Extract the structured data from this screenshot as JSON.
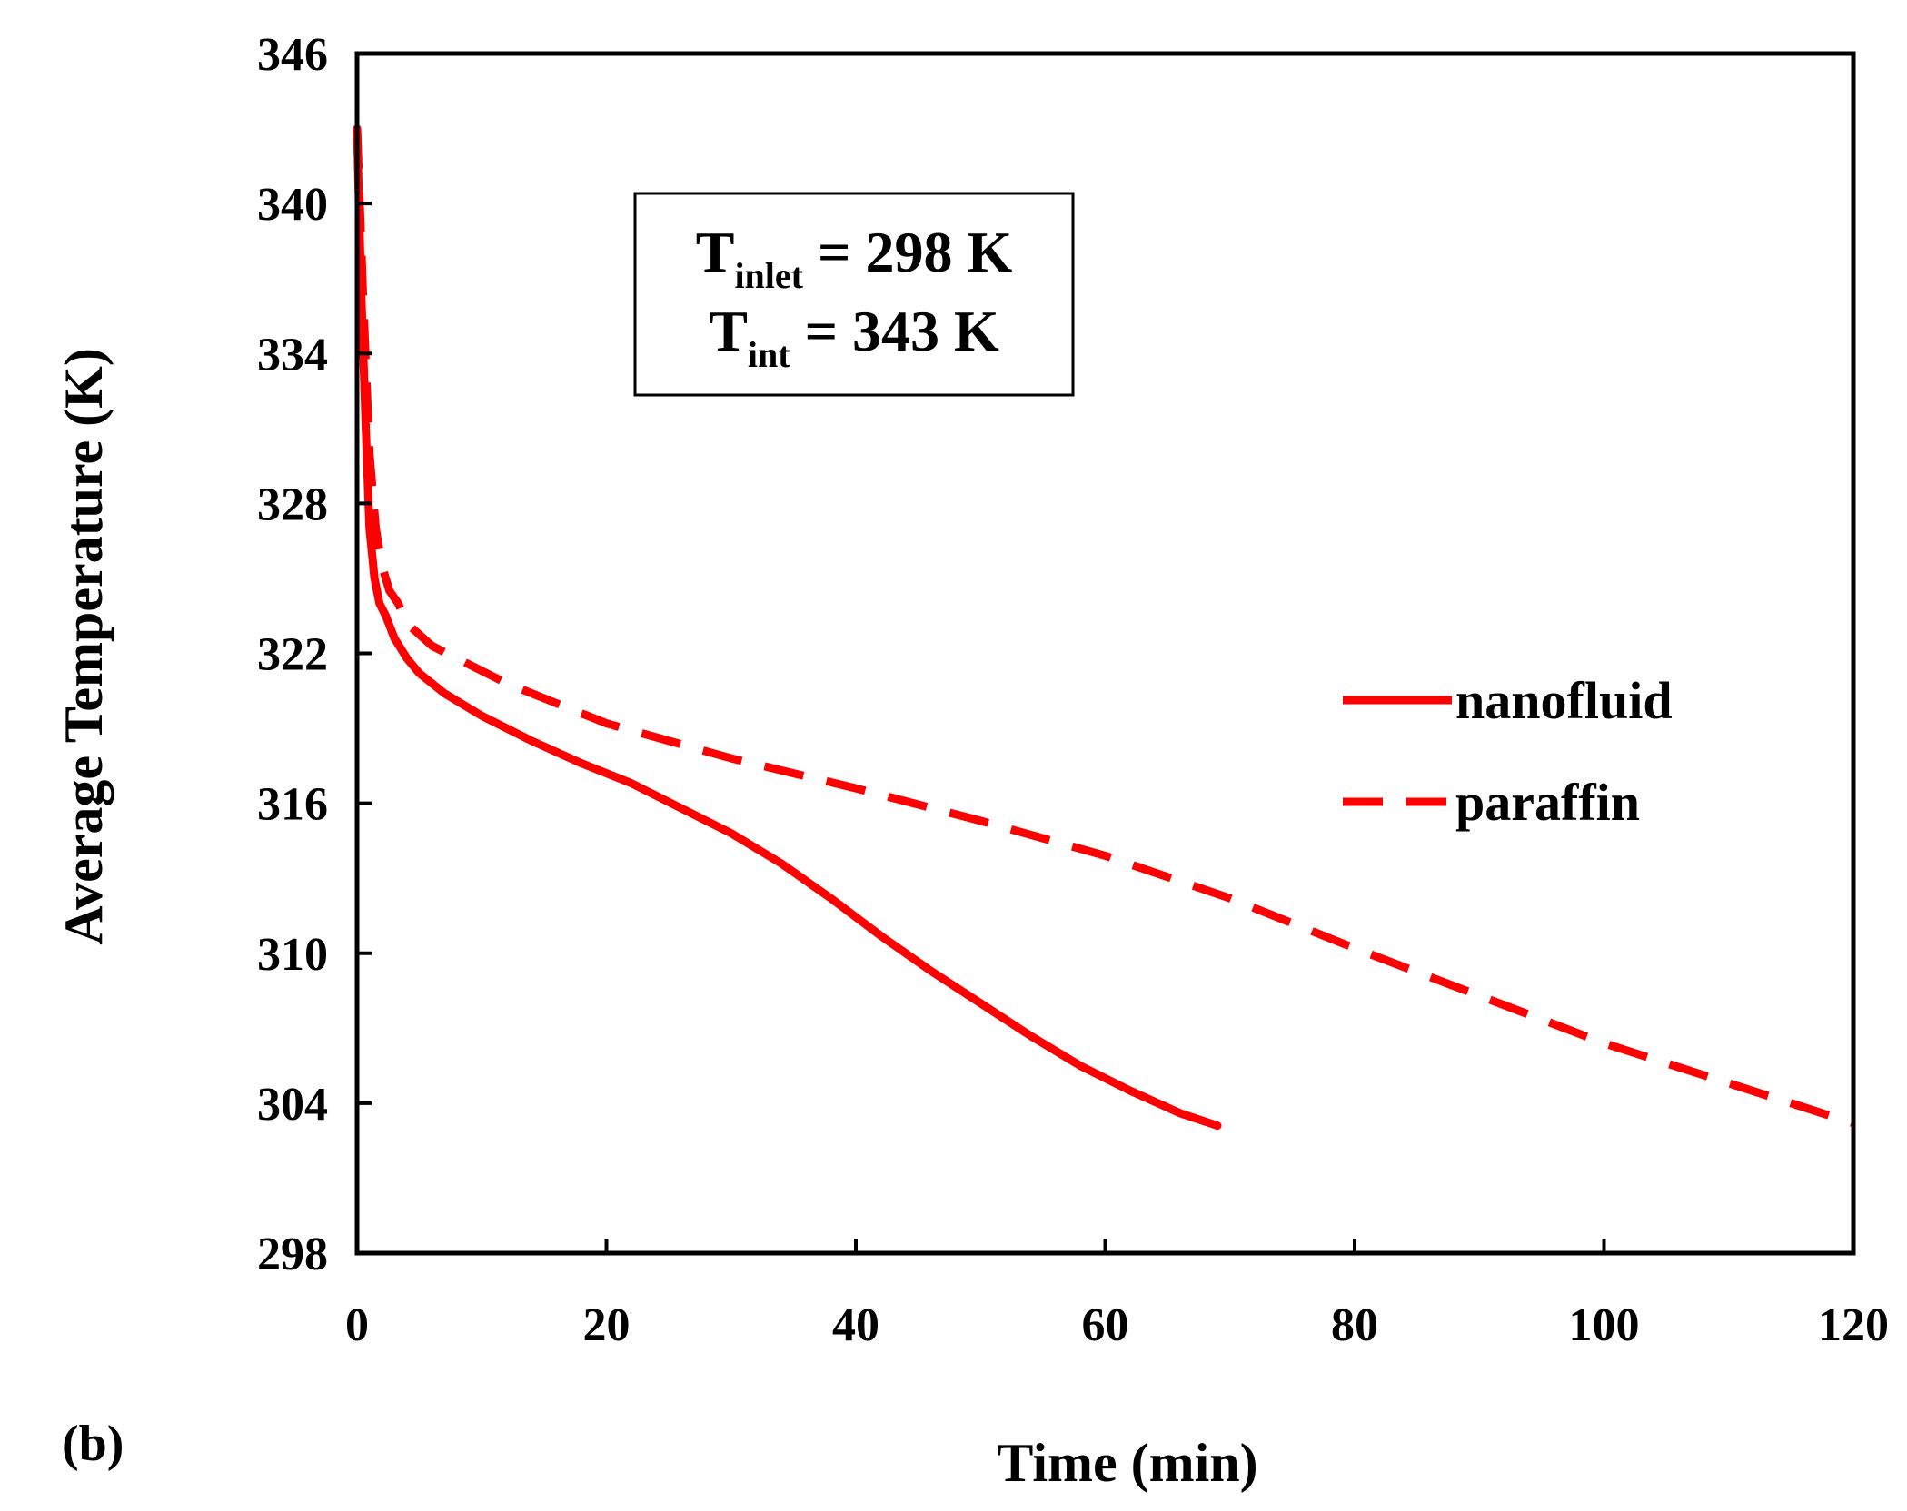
{
  "chart_data": {
    "type": "line",
    "panel_label": "(b)",
    "xlabel": "Time (min)",
    "ylabel": "Average Temperature (K)",
    "xlim": [
      0,
      120
    ],
    "ylim": [
      298,
      346
    ],
    "x_ticks": [
      0,
      20,
      40,
      60,
      80,
      100,
      120
    ],
    "y_ticks": [
      298,
      304,
      310,
      316,
      322,
      328,
      334,
      340,
      346
    ],
    "grid": false,
    "legend_position": "right",
    "annotation": {
      "line1": {
        "main": "T",
        "sub": "inlet",
        "rest": " = 298 K"
      },
      "line2": {
        "main": "T",
        "sub": "int",
        "rest": " = 343 K"
      }
    },
    "colors": {
      "series": "#ff0000",
      "axes": "#000000"
    },
    "series": [
      {
        "name": "nanofluid",
        "style": "solid",
        "x": [
          0,
          0.3,
          0.7,
          1.0,
          1.4,
          1.8,
          2.3,
          3,
          4,
          5,
          7,
          10,
          14,
          18,
          22,
          26,
          30,
          34,
          38,
          42,
          46,
          50,
          54,
          58,
          62,
          66,
          69
        ],
        "y": [
          343,
          337,
          331,
          327,
          325,
          324,
          323.5,
          322.6,
          321.8,
          321.2,
          320.4,
          319.5,
          318.5,
          317.6,
          316.8,
          315.8,
          314.8,
          313.6,
          312.2,
          310.7,
          309.3,
          308.0,
          306.7,
          305.5,
          304.5,
          303.6,
          303.1
        ]
      },
      {
        "name": "paraffin",
        "style": "dashed",
        "x": [
          0,
          0.5,
          1.0,
          1.5,
          2.0,
          2.6,
          3.3,
          4,
          6,
          8,
          12,
          20,
          30,
          40,
          50,
          60,
          70,
          80,
          90,
          100,
          110,
          120
        ],
        "y": [
          343,
          336,
          330,
          327,
          325.5,
          324.5,
          324,
          323.2,
          322.3,
          321.8,
          320.8,
          319.2,
          317.8,
          316.6,
          315.3,
          313.9,
          312.2,
          310.2,
          308.3,
          306.4,
          304.8,
          303.2
        ]
      }
    ]
  }
}
